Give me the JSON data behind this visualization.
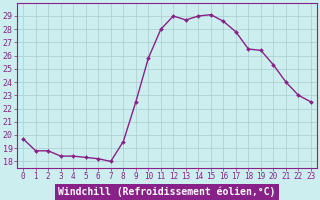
{
  "x": [
    0,
    1,
    2,
    3,
    4,
    5,
    6,
    7,
    8,
    9,
    10,
    11,
    12,
    13,
    14,
    15,
    16,
    17,
    18,
    19,
    20,
    21,
    22,
    23
  ],
  "y": [
    19.7,
    18.8,
    18.8,
    18.4,
    18.4,
    18.3,
    18.2,
    18.0,
    19.5,
    22.5,
    25.8,
    28.0,
    29.0,
    28.7,
    29.0,
    29.1,
    28.6,
    27.8,
    26.5,
    26.4,
    25.3,
    24.0,
    23.0,
    22.5
  ],
  "line_color": "#882288",
  "marker": "D",
  "marker_size": 2.0,
  "linewidth": 1.0,
  "xlabel": "Windchill (Refroidissement éolien,°C)",
  "xlabel_fontsize": 7,
  "bg_color": "#cceeee",
  "grid_color": "#aacccc",
  "ylim": [
    17.5,
    30.0
  ],
  "xlim": [
    -0.5,
    23.5
  ],
  "yticks": [
    18,
    19,
    20,
    21,
    22,
    23,
    24,
    25,
    26,
    27,
    28,
    29
  ],
  "xticks": [
    0,
    1,
    2,
    3,
    4,
    5,
    6,
    7,
    8,
    9,
    10,
    11,
    12,
    13,
    14,
    15,
    16,
    17,
    18,
    19,
    20,
    21,
    22,
    23
  ],
  "tick_color": "#882288",
  "tick_fontsize": 5.5,
  "ytick_fontsize": 6,
  "spine_color": "#882288",
  "xlabel_bg": "#882288",
  "xlabel_fg": "#ffffff"
}
